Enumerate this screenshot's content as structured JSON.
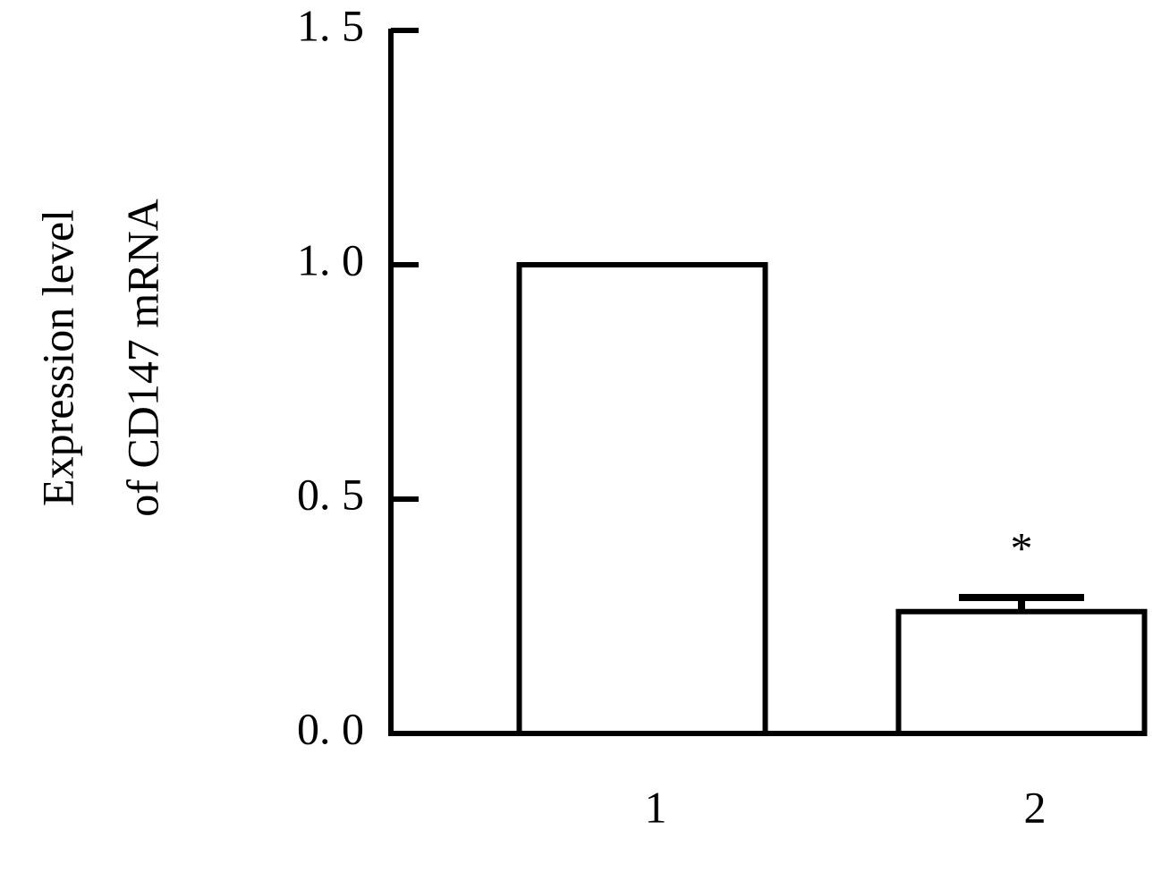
{
  "chart_data": {
    "type": "bar",
    "ylabel": [
      "Expression level",
      "of CD147 mRNA"
    ],
    "categories": [
      "1",
      "2"
    ],
    "values": [
      1.0,
      0.26
    ],
    "errors": [
      null,
      0.03
    ],
    "annotation": "*",
    "color": "#ffffff",
    "ylim": [
      0,
      1.5
    ],
    "yticks": [
      {
        "value": 0,
        "label": "0. 0"
      },
      {
        "value": 0.5,
        "label": "0. 5"
      },
      {
        "value": 1.0,
        "label": "1. 0"
      },
      {
        "value": 1.5,
        "label": "1. 5"
      }
    ],
    "grid": false
  }
}
